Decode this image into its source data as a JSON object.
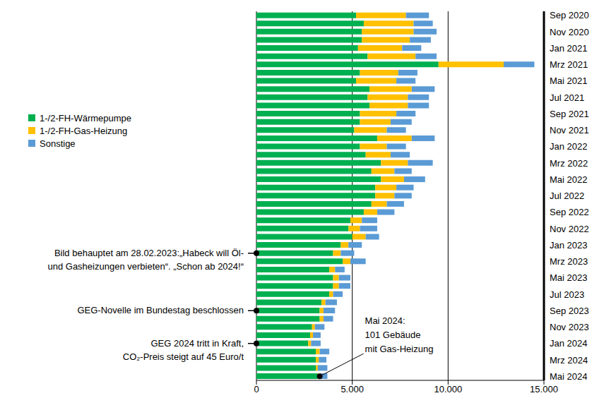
{
  "chart_data": {
    "type": "bar",
    "orientation": "horizontal",
    "stacked": true,
    "grid": true,
    "categories": [
      "Sep 2020",
      null,
      "Nov 2020",
      null,
      "Jan 2021",
      null,
      "Mrz 2021",
      null,
      "Mai 2021",
      null,
      "Jul 2021",
      null,
      "Sep 2021",
      null,
      "Nov 2021",
      null,
      "Jan 2022",
      null,
      "Mrz 2022",
      null,
      "Mai 2022",
      null,
      "Jul 2022",
      null,
      "Sep 2022",
      null,
      "Nov 2022",
      null,
      "Jan 2023",
      null,
      "Mrz 2023",
      null,
      "Mai 2023",
      null,
      "Jul 2023",
      null,
      "Sep 2023",
      null,
      "Nov 2023",
      null,
      "Jan 2024",
      null,
      "Mrz 2024",
      null,
      "Mai 2024"
    ],
    "series": [
      {
        "name": "1-/2-FH-Wärmepumpe",
        "color": "#00b050",
        "values": [
          5200,
          5600,
          5500,
          5500,
          5300,
          5800,
          9500,
          5400,
          5200,
          5900,
          5800,
          5900,
          5400,
          5400,
          5100,
          6300,
          5400,
          5700,
          6500,
          6000,
          6500,
          6200,
          6200,
          6000,
          5600,
          4900,
          4800,
          5000,
          4400,
          4000,
          4500,
          3800,
          4000,
          4000,
          3800,
          3400,
          3300,
          3300,
          2900,
          2800,
          2700,
          3100,
          3100,
          3100,
          3200
        ]
      },
      {
        "name": "1-/2-FH-Gas-Heizung",
        "color": "#ffc000",
        "values": [
          2600,
          2600,
          2700,
          2500,
          2300,
          2500,
          3400,
          2000,
          2100,
          2200,
          2100,
          2000,
          1900,
          1600,
          1700,
          1800,
          1400,
          1300,
          1400,
          1200,
          1200,
          1100,
          1000,
          800,
          700,
          600,
          600,
          700,
          400,
          400,
          400,
          300,
          300,
          300,
          200,
          200,
          200,
          200,
          150,
          150,
          150,
          200,
          150,
          100,
          101
        ]
      },
      {
        "name": "Sonstige",
        "color": "#5b9bd5",
        "values": [
          1200,
          1000,
          1200,
          1100,
          1000,
          1100,
          1600,
          1000,
          1000,
          1200,
          1100,
          1100,
          1000,
          1100,
          1000,
          1200,
          1000,
          1000,
          1300,
          900,
          1100,
          900,
          900,
          900,
          900,
          800,
          900,
          700,
          700,
          700,
          800,
          500,
          600,
          600,
          500,
          600,
          600,
          500,
          500,
          400,
          500,
          500,
          400,
          500,
          400
        ]
      }
    ],
    "xlim": [
      0,
      15000
    ],
    "xticks": [
      0,
      {
        "value": 5000,
        "label": "5.000"
      },
      {
        "value": 10000,
        "label": "10.000"
      },
      {
        "value": 15000,
        "label": "15.000"
      }
    ],
    "annotations": [
      {
        "text": [
          "Bild behauptet am 28.02.2023:„Habeck will Öl-",
          "und Gasheizungen verbieten“. „Schon ab 2024!“"
        ],
        "row": 29
      },
      {
        "text": [
          "GEG-Novelle  im Bundestag beschlossen"
        ],
        "row": 36
      },
      {
        "text": [
          "GEG 2024 tritt in Kraft,",
          "CO₂-Preis steigt auf 45 Euro/t"
        ],
        "row": 40
      },
      {
        "text": [
          "Mai 2024:",
          "101 Gebäude",
          "mit Gas-Heizung"
        ],
        "row": 44,
        "series": "1-/2-FH-Gas-Heizung"
      }
    ]
  }
}
